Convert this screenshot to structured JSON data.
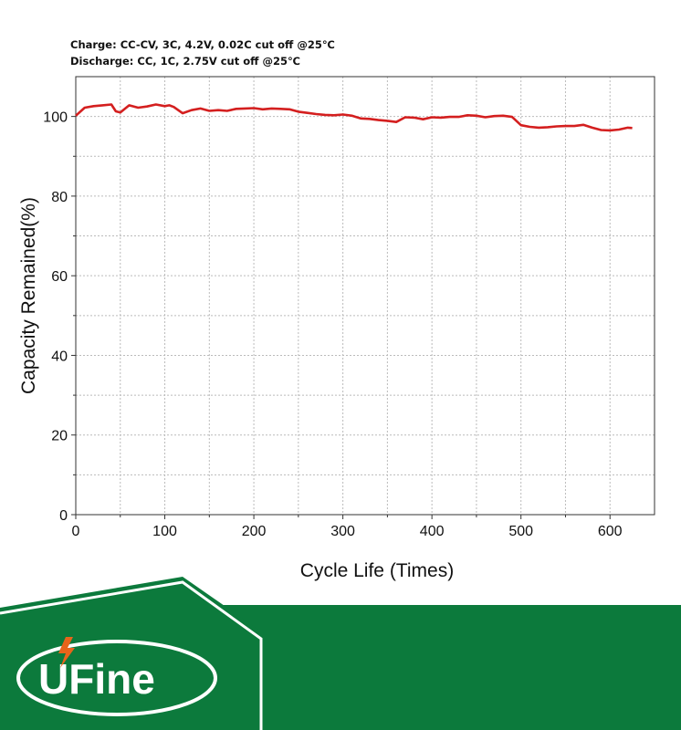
{
  "header": {
    "charge_condition": "Charge: CC-CV, 3C, 4.2V, 0.02C cut off @25℃",
    "discharge_condition": "Discharge: CC, 1C, 2.75V cut off @25℃"
  },
  "brand": {
    "logo_text": "UFine",
    "logo_color": "#ffffff",
    "green": "#0c7a3c"
  },
  "chart_data": {
    "type": "line",
    "title": "",
    "xlabel": "Cycle Life (Times)",
    "ylabel": "Capacity Remained(%)",
    "xlim": [
      0,
      650
    ],
    "ylim": [
      0,
      110
    ],
    "xticks": [
      0,
      100,
      200,
      300,
      400,
      500,
      600
    ],
    "yticks": [
      0,
      20,
      40,
      60,
      80,
      100
    ],
    "grid": true,
    "legend": "none",
    "series": [
      {
        "color": "#d41f1f",
        "x": [
          0,
          10,
          20,
          30,
          40,
          45,
          50,
          60,
          70,
          80,
          90,
          100,
          105,
          110,
          120,
          130,
          140,
          150,
          160,
          170,
          180,
          190,
          200,
          210,
          220,
          230,
          240,
          250,
          260,
          270,
          280,
          290,
          300,
          310,
          320,
          330,
          340,
          350,
          360,
          370,
          380,
          390,
          400,
          410,
          420,
          430,
          440,
          450,
          460,
          470,
          480,
          490,
          500,
          510,
          520,
          530,
          540,
          550,
          560,
          570,
          580,
          590,
          600,
          610,
          620,
          625
        ],
        "y": [
          100.2,
          102.2,
          102.6,
          102.8,
          103.0,
          101.3,
          101.0,
          102.8,
          102.2,
          102.5,
          103.0,
          102.6,
          102.8,
          102.4,
          100.8,
          101.6,
          102.0,
          101.4,
          101.6,
          101.4,
          101.9,
          102.0,
          102.1,
          101.8,
          102.0,
          101.9,
          101.8,
          101.2,
          100.9,
          100.6,
          100.4,
          100.3,
          100.5,
          100.2,
          99.5,
          99.4,
          99.1,
          98.9,
          98.6,
          99.8,
          99.7,
          99.3,
          99.8,
          99.7,
          99.9,
          99.9,
          100.3,
          100.2,
          99.8,
          100.1,
          100.2,
          99.9,
          97.8,
          97.4,
          97.2,
          97.3,
          97.5,
          97.6,
          97.6,
          97.9,
          97.2,
          96.6,
          96.5,
          96.7,
          97.2,
          97.1
        ]
      }
    ]
  }
}
